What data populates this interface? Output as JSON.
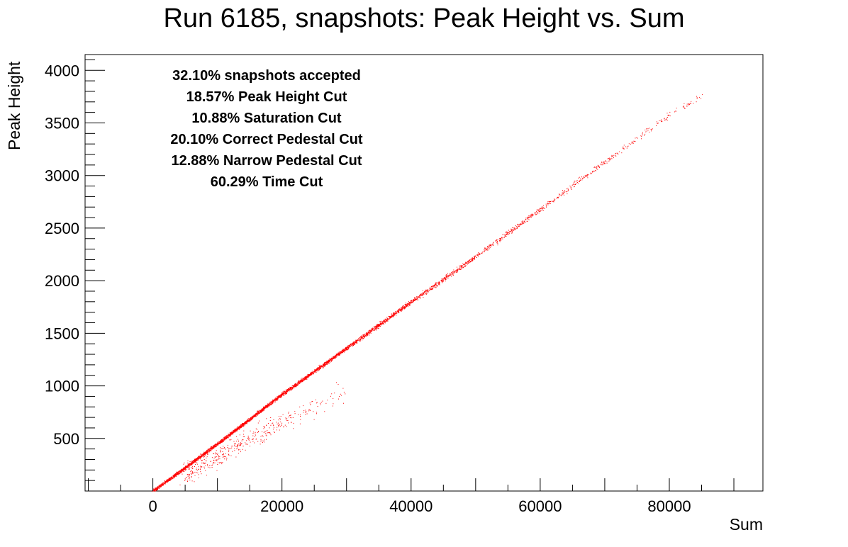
{
  "chart_data": {
    "type": "scatter",
    "title": "Run 6185, snapshots: Peak Height vs. Sum",
    "xlabel": "Sum",
    "ylabel": "Peak Height",
    "xlim": [
      -10500,
      94500
    ],
    "ylim": [
      0,
      4150
    ],
    "x_ticks": [
      0,
      20000,
      40000,
      60000,
      80000
    ],
    "x_minor_step": 5000,
    "y_ticks": [
      500,
      1000,
      1500,
      2000,
      2500,
      3000,
      3500,
      4000
    ],
    "y_minor_step": 100,
    "grid": false,
    "legend": "none",
    "marker_color": "#ff0000",
    "annotations": [
      "32.10% snapshots accepted",
      "18.57% Peak Height Cut",
      "10.88% Saturation Cut",
      "20.10% Correct Pedestal Cut",
      "12.88% Narrow Pedestal Cut",
      "60.29% Time Cut"
    ],
    "series": [
      {
        "band": "main",
        "x": [
          0,
          10000,
          20000,
          30000,
          40000,
          50000,
          60000,
          70000,
          80000,
          85000
        ],
        "y": [
          0,
          450,
          920,
          1360,
          1800,
          2230,
          2680,
          3130,
          3580,
          3760
        ],
        "density": [
          1.0,
          1.0,
          0.95,
          0.75,
          0.5,
          0.3,
          0.2,
          0.12,
          0.08,
          0.05
        ]
      },
      {
        "band": "lower",
        "x": [
          5000,
          10000,
          15000,
          20000,
          25000,
          30000
        ],
        "y": [
          160,
          330,
          500,
          650,
          800,
          970
        ],
        "density": [
          0.6,
          0.5,
          0.4,
          0.3,
          0.15,
          0.06
        ]
      }
    ]
  }
}
